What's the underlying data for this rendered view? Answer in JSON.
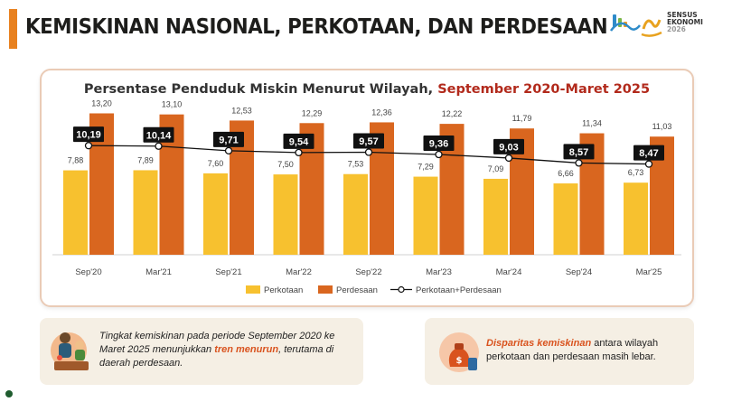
{
  "slide": {
    "title": "KEMISKINAN NASIONAL, PERKOTAAN, DAN PERDESAAN",
    "accent_color": "#e8811f"
  },
  "logo": {
    "icon": "sensus-ekonomi-logo",
    "line1": "SENSUS",
    "line2": "EKONOMI",
    "line3": "2026"
  },
  "chart_data": {
    "type": "bar",
    "title": "Persentase Penduduk Miskin Menurut Wilayah, ",
    "title_highlight": "September 2020-Maret 2025",
    "categories": [
      "Sep'20",
      "Mar'21",
      "Sep'21",
      "Mar'22",
      "Sep'22",
      "Mar'23",
      "Mar'24",
      "Sep'24",
      "Mar'25"
    ],
    "series": [
      {
        "name": "Perkotaan",
        "kind": "bar",
        "color": "#f7c12f",
        "values": [
          7.88,
          7.89,
          7.6,
          7.5,
          7.53,
          7.29,
          7.09,
          6.66,
          6.73
        ],
        "labels": [
          "7,88",
          "7,89",
          "7,60",
          "7,50",
          "7,53",
          "7,29",
          "7,09",
          "6,66",
          "6,73"
        ]
      },
      {
        "name": "Perdesaan",
        "kind": "bar",
        "color": "#d9661f",
        "values": [
          13.2,
          13.1,
          12.53,
          12.29,
          12.36,
          12.22,
          11.79,
          11.34,
          11.03
        ],
        "labels": [
          "13,20",
          "13,10",
          "12,53",
          "12,29",
          "12,36",
          "12,22",
          "11,79",
          "11,34",
          "11,03"
        ]
      },
      {
        "name": "Perkotaan+Perdesaan",
        "kind": "line",
        "color": "#111111",
        "values": [
          10.19,
          10.14,
          9.71,
          9.54,
          9.57,
          9.36,
          9.03,
          8.57,
          8.47
        ],
        "labels": [
          "10,19",
          "10,14",
          "9,71",
          "9,54",
          "9,57",
          "9,36",
          "9,03",
          "8,57",
          "8,47"
        ]
      }
    ],
    "ylim": [
      0,
      14
    ],
    "grid": false,
    "legend_position": "bottom-center"
  },
  "notes": {
    "left": {
      "icon": "family-illustration",
      "part1": "Tingkat kemiskinan pada periode September 2020 ke Maret 2025  menunjukkan ",
      "highlight": "tren menurun",
      "part2": ", terutama di daerah perdesaan."
    },
    "right": {
      "icon": "money-bag-illustration",
      "highlight": "Disparitas kemiskinan",
      "part2": " antara wilayah perkotaan dan perdesaan masih lebar."
    }
  }
}
